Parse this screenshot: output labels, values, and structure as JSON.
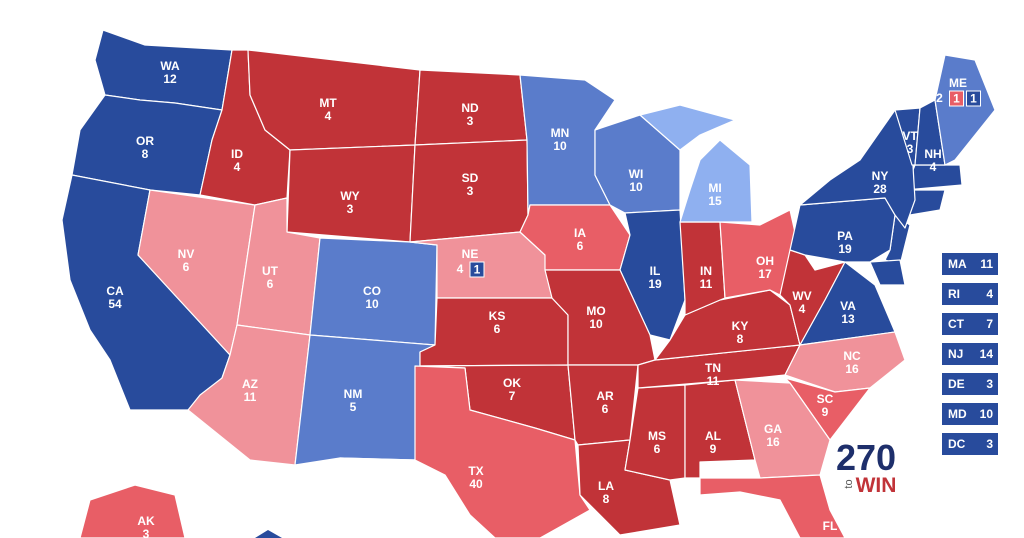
{
  "states": [
    {
      "abbr": "WA",
      "votes": 12,
      "color": "#284b9c"
    },
    {
      "abbr": "OR",
      "votes": 8,
      "color": "#284b9c"
    },
    {
      "abbr": "CA",
      "votes": 54,
      "color": "#284b9c"
    },
    {
      "abbr": "NV",
      "votes": 6,
      "color": "#f0929a"
    },
    {
      "abbr": "ID",
      "votes": 4,
      "color": "#c13338"
    },
    {
      "abbr": "MT",
      "votes": 4,
      "color": "#c13338"
    },
    {
      "abbr": "WY",
      "votes": 3,
      "color": "#c13338"
    },
    {
      "abbr": "UT",
      "votes": 6,
      "color": "#f0929a"
    },
    {
      "abbr": "CO",
      "votes": 10,
      "color": "#5a7ccb"
    },
    {
      "abbr": "AZ",
      "votes": 11,
      "color": "#f0929a"
    },
    {
      "abbr": "NM",
      "votes": 5,
      "color": "#5a7ccb"
    },
    {
      "abbr": "ND",
      "votes": 3,
      "color": "#c13338"
    },
    {
      "abbr": "SD",
      "votes": 3,
      "color": "#c13338"
    },
    {
      "abbr": "NE",
      "votes": 4,
      "color": "#f0929a",
      "districts": [
        {
          "votes": 1,
          "color": "#284b9c"
        }
      ]
    },
    {
      "abbr": "KS",
      "votes": 6,
      "color": "#c13338"
    },
    {
      "abbr": "OK",
      "votes": 7,
      "color": "#c13338"
    },
    {
      "abbr": "TX",
      "votes": 40,
      "color": "#e85e66"
    },
    {
      "abbr": "MN",
      "votes": 10,
      "color": "#5a7ccb"
    },
    {
      "abbr": "IA",
      "votes": 6,
      "color": "#e85e66"
    },
    {
      "abbr": "WI",
      "votes": 10,
      "color": "#5a7ccb"
    },
    {
      "abbr": "IL",
      "votes": 19,
      "color": "#284b9c"
    },
    {
      "abbr": "MO",
      "votes": 10,
      "color": "#c13338"
    },
    {
      "abbr": "AR",
      "votes": 6,
      "color": "#c13338"
    },
    {
      "abbr": "LA",
      "votes": 8,
      "color": "#c13338"
    },
    {
      "abbr": "MS",
      "votes": 6,
      "color": "#c13338"
    },
    {
      "abbr": "AL",
      "votes": 9,
      "color": "#c13338"
    },
    {
      "abbr": "TN",
      "votes": 11,
      "color": "#c13338"
    },
    {
      "abbr": "KY",
      "votes": 8,
      "color": "#c13338"
    },
    {
      "abbr": "IN",
      "votes": 11,
      "color": "#c13338"
    },
    {
      "abbr": "OH",
      "votes": 17,
      "color": "#e85e66"
    },
    {
      "abbr": "MI",
      "votes": 15,
      "color": "#8fb0f0"
    },
    {
      "abbr": "WV",
      "votes": 4,
      "color": "#c13338"
    },
    {
      "abbr": "VA",
      "votes": 13,
      "color": "#284b9c"
    },
    {
      "abbr": "NC",
      "votes": 16,
      "color": "#f0929a"
    },
    {
      "abbr": "SC",
      "votes": 9,
      "color": "#e85e66"
    },
    {
      "abbr": "GA",
      "votes": 16,
      "color": "#f0929a"
    },
    {
      "abbr": "FL",
      "color": "#e85e66"
    },
    {
      "abbr": "PA",
      "votes": 19,
      "color": "#284b9c"
    },
    {
      "abbr": "NY",
      "votes": 28,
      "color": "#284b9c"
    },
    {
      "abbr": "VT",
      "votes": 3,
      "color": "#284b9c"
    },
    {
      "abbr": "NH",
      "votes": 4,
      "color": "#284b9c"
    },
    {
      "abbr": "ME",
      "votes": 2,
      "color": "#5a7ccb",
      "districts": [
        {
          "votes": 1,
          "color": "#e85e66"
        },
        {
          "votes": 1,
          "color": "#284b9c"
        }
      ]
    },
    {
      "abbr": "AK",
      "votes": 3,
      "color": "#e85e66"
    }
  ],
  "side_boxes": [
    {
      "abbr": "MA",
      "votes": 11,
      "color": "#284b9c"
    },
    {
      "abbr": "RI",
      "votes": 4,
      "color": "#284b9c"
    },
    {
      "abbr": "CT",
      "votes": 7,
      "color": "#284b9c"
    },
    {
      "abbr": "NJ",
      "votes": 14,
      "color": "#284b9c"
    },
    {
      "abbr": "DE",
      "votes": 3,
      "color": "#284b9c"
    },
    {
      "abbr": "MD",
      "votes": 10,
      "color": "#284b9c"
    },
    {
      "abbr": "DC",
      "votes": 3,
      "color": "#284b9c"
    }
  ],
  "logo": {
    "number": "270",
    "prefix": "to",
    "word": "WIN"
  }
}
